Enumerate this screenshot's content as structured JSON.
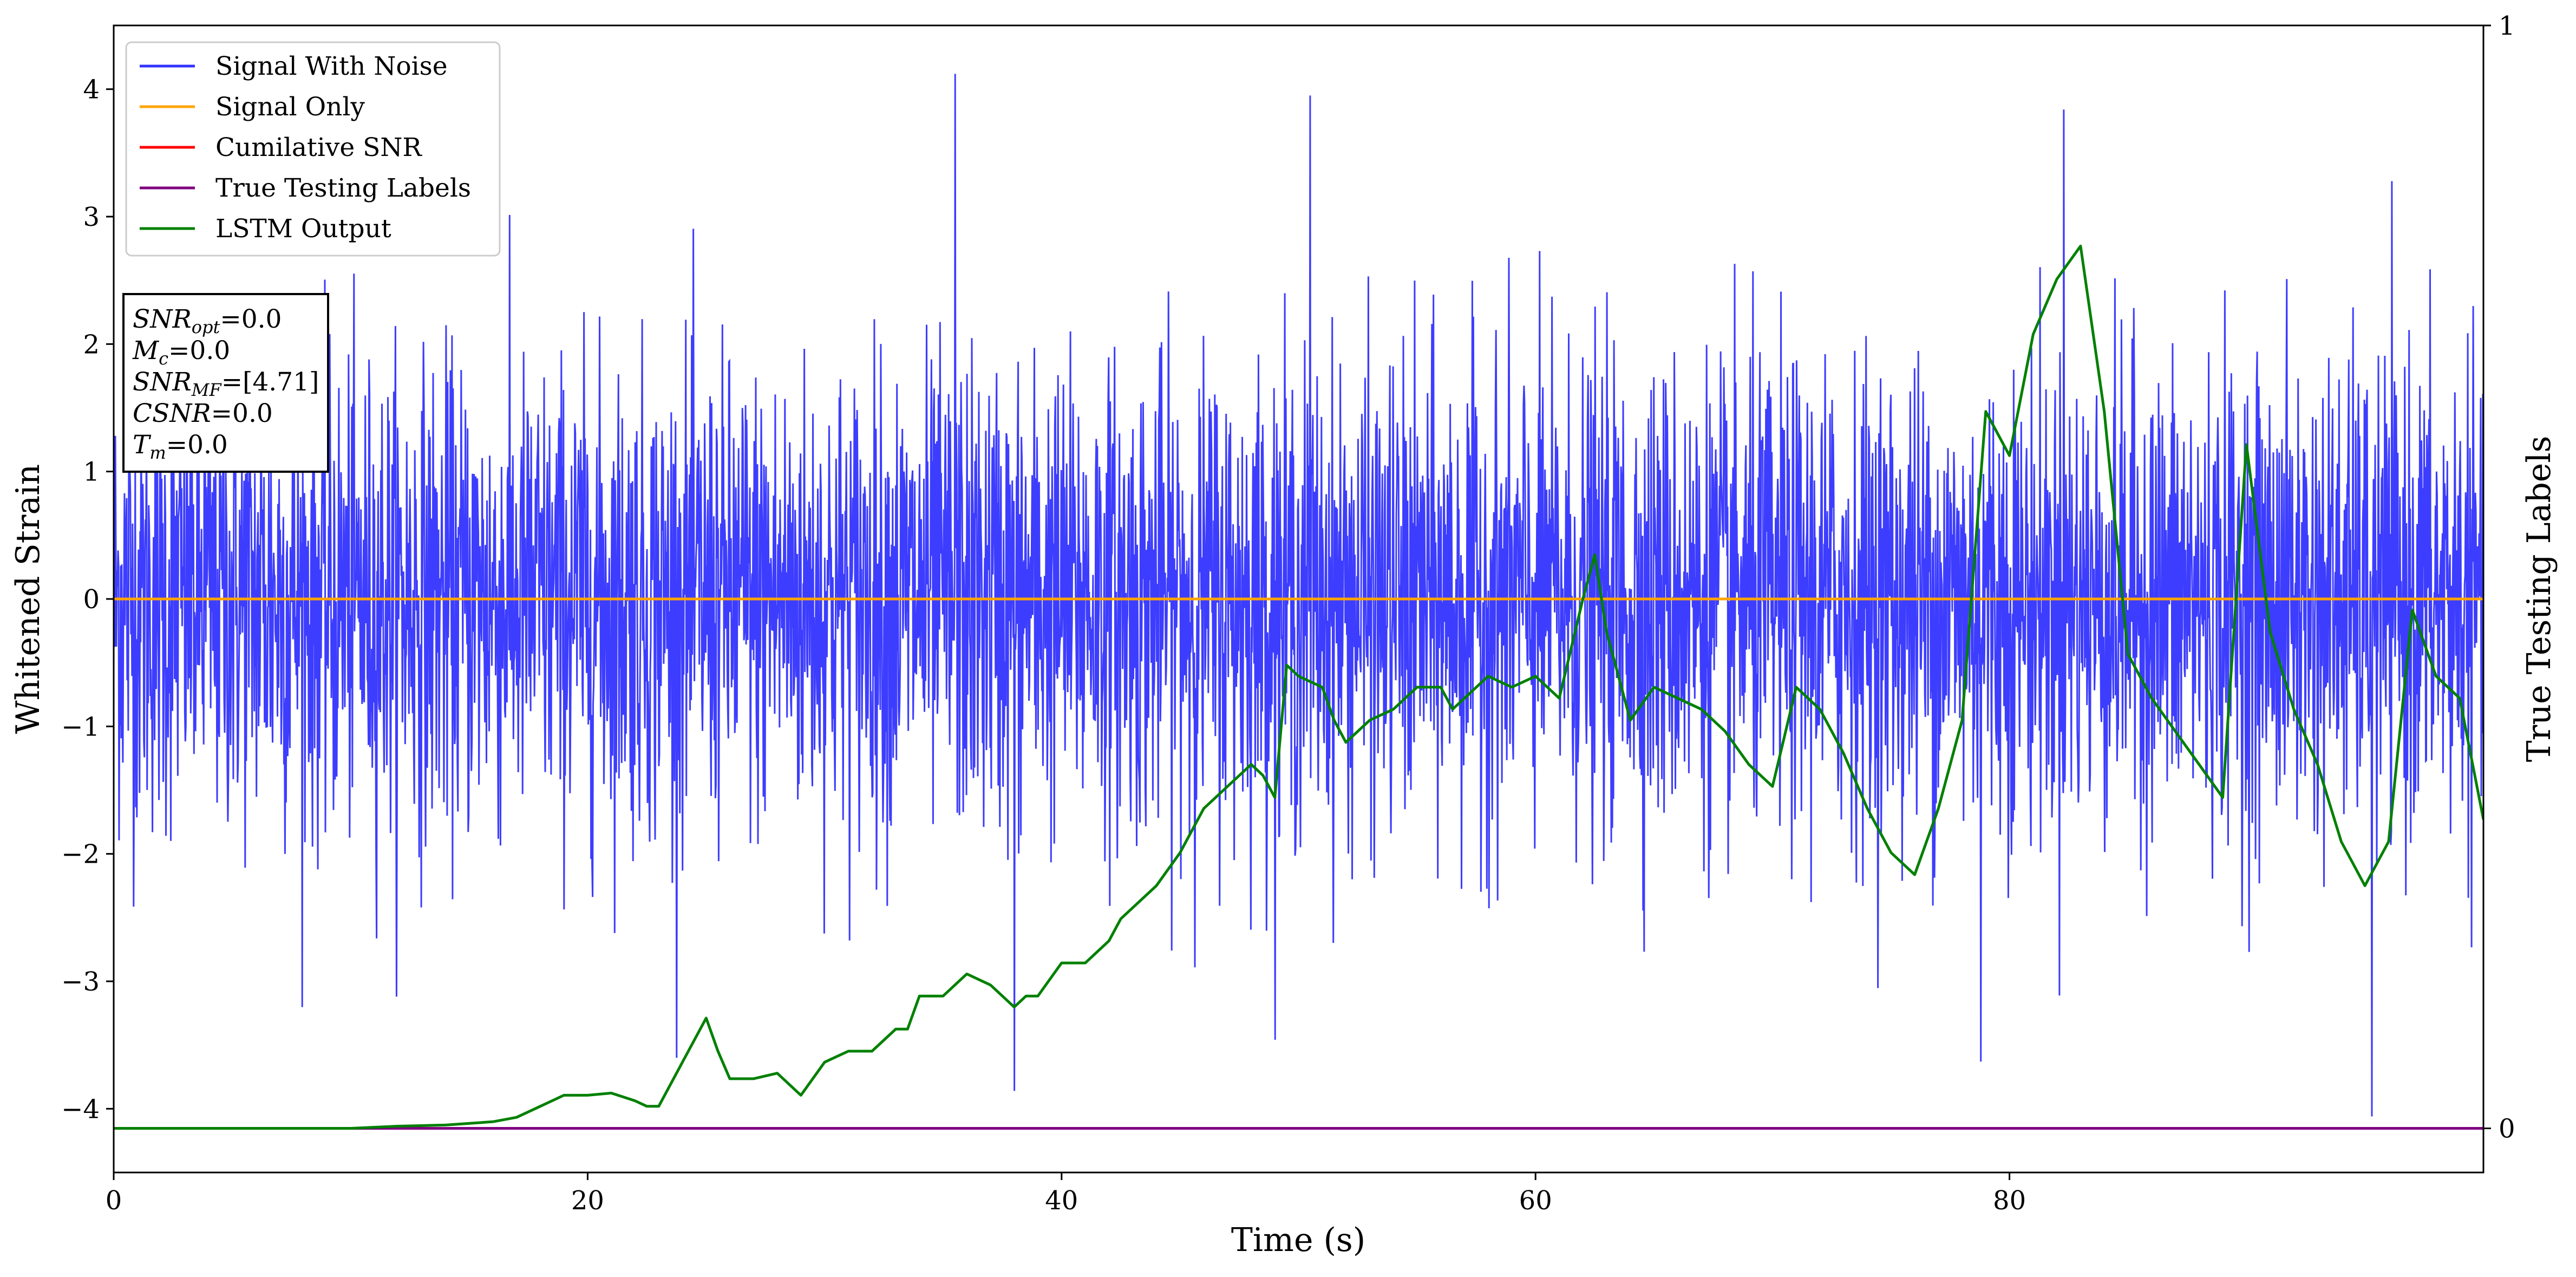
{
  "chart_data": {
    "type": "line",
    "xlabel": "Time (s)",
    "ylabel": "Whitened Strain",
    "y2label": "True Testing Labels",
    "xlim": [
      0,
      100
    ],
    "ylim": [
      -4.5,
      4.5
    ],
    "y2lim": [
      -0.04,
      1.0
    ],
    "x_ticks": [
      0,
      20,
      40,
      60,
      80
    ],
    "y_ticks": [
      -4,
      -3,
      -2,
      -1,
      0,
      1,
      2,
      3,
      4
    ],
    "y2_ticks": [
      0,
      1
    ],
    "grid": false,
    "legend_position": "upper-left",
    "series": [
      {
        "name": "Signal With Noise",
        "color": "#3333ff",
        "axis": "left",
        "description_level": "dense noise around 0 with std ~0.9",
        "peaks": [
          {
            "x": 35.5,
            "y": 4.12
          },
          {
            "x": 95.3,
            "y": -4.06
          },
          {
            "x": 38.0,
            "y": -3.86
          },
          {
            "x": 78.8,
            "y": -3.63
          },
          {
            "x": 82.3,
            "y": 3.84
          },
          {
            "x": 50.5,
            "y": 3.95
          }
        ]
      },
      {
        "name": "Signal Only",
        "color": "#ffa500",
        "axis": "left",
        "x": [
          0,
          100
        ],
        "y": [
          0,
          0
        ]
      },
      {
        "name": "Cumilative SNR",
        "color": "#ff0000",
        "axis": "left",
        "x": [],
        "y": []
      },
      {
        "name": "True Testing Labels",
        "color": "#800080",
        "axis": "right",
        "x": [
          0,
          100
        ],
        "y": [
          0,
          0
        ]
      },
      {
        "name": "LSTM Output",
        "color": "#008000",
        "axis": "right",
        "x": [
          0,
          10,
          12,
          14,
          16,
          17,
          18,
          19,
          20,
          21,
          22,
          22.5,
          23,
          24,
          25,
          25.5,
          26,
          27,
          28,
          29,
          30,
          31,
          32,
          33,
          33.5,
          34,
          35,
          36,
          37,
          38,
          38.5,
          39,
          40,
          41,
          42,
          42.5,
          43,
          44,
          45,
          45.5,
          46,
          47,
          48,
          48.5,
          49,
          49.5,
          50,
          51,
          51.5,
          52,
          53,
          54,
          55,
          56,
          56.5,
          57,
          58,
          59,
          60,
          61,
          62,
          62.5,
          63,
          64,
          65,
          66,
          67,
          68,
          69,
          70,
          71,
          72,
          73,
          74,
          75,
          76,
          77,
          78,
          79,
          80,
          81,
          82,
          83,
          84,
          85,
          86,
          87,
          88,
          89,
          90,
          91,
          92,
          93,
          94,
          95,
          96,
          97,
          98,
          99,
          100
        ],
        "y": [
          0.0,
          0.0,
          0.002,
          0.003,
          0.006,
          0.01,
          0.02,
          0.03,
          0.03,
          0.032,
          0.025,
          0.02,
          0.02,
          0.06,
          0.1,
          0.07,
          0.045,
          0.045,
          0.05,
          0.03,
          0.06,
          0.07,
          0.07,
          0.09,
          0.09,
          0.12,
          0.12,
          0.14,
          0.13,
          0.11,
          0.12,
          0.12,
          0.15,
          0.15,
          0.17,
          0.19,
          0.2,
          0.22,
          0.25,
          0.27,
          0.29,
          0.31,
          0.33,
          0.32,
          0.3,
          0.42,
          0.41,
          0.4,
          0.37,
          0.35,
          0.37,
          0.38,
          0.4,
          0.4,
          0.38,
          0.39,
          0.41,
          0.4,
          0.41,
          0.39,
          0.48,
          0.52,
          0.45,
          0.37,
          0.4,
          0.39,
          0.38,
          0.36,
          0.33,
          0.31,
          0.4,
          0.38,
          0.34,
          0.29,
          0.25,
          0.23,
          0.29,
          0.37,
          0.65,
          0.61,
          0.72,
          0.77,
          0.8,
          0.65,
          0.43,
          0.39,
          0.36,
          0.33,
          0.3,
          0.62,
          0.45,
          0.38,
          0.33,
          0.26,
          0.22,
          0.26,
          0.47,
          0.41,
          0.39,
          0.28
        ]
      }
    ],
    "annotation_box": {
      "lines": [
        {
          "symbol": "SNR",
          "sub": "opt",
          "value": "=0.0"
        },
        {
          "symbol": "M",
          "sub": "c",
          "value": "=0.0"
        },
        {
          "symbol": "SNR",
          "sub": "MF",
          "value": "=[4.71]"
        },
        {
          "symbol": "CSNR",
          "sub": "",
          "value": "=0.0"
        },
        {
          "symbol": "T",
          "sub": "m",
          "value": "=0.0"
        }
      ]
    }
  }
}
